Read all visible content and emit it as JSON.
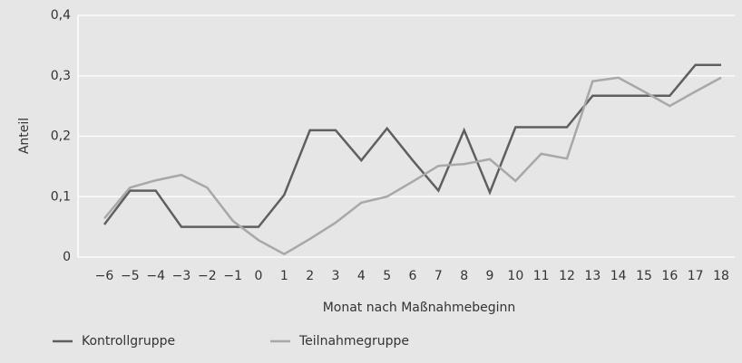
{
  "chart_data": {
    "type": "line",
    "xlabel": "Monat nach Maßnahmebeginn",
    "ylabel": "Anteil",
    "categories": [
      "−6",
      "−5",
      "−4",
      "−3",
      "−2",
      "−1",
      "0",
      "1",
      "2",
      "3",
      "4",
      "5",
      "6",
      "7",
      "8",
      "9",
      "10",
      "11",
      "12",
      "13",
      "14",
      "15",
      "16",
      "17",
      "18"
    ],
    "series": [
      {
        "name": "Kontrollgruppe",
        "color": "#5f5f5f",
        "values": [
          0.054,
          0.11,
          0.11,
          0.05,
          0.05,
          0.05,
          0.05,
          0.103,
          0.21,
          0.21,
          0.16,
          0.213,
          0.16,
          0.11,
          0.21,
          0.107,
          0.215,
          0.215,
          0.215,
          0.267,
          0.267,
          0.267,
          0.267,
          0.318,
          0.318
        ]
      },
      {
        "name": "Teilnahmegruppe",
        "color": "#a8a8a8",
        "values": [
          0.064,
          0.115,
          0.127,
          0.136,
          0.115,
          0.06,
          0.028,
          0.005,
          0.03,
          0.057,
          0.09,
          0.1,
          0.125,
          0.151,
          0.154,
          0.162,
          0.126,
          0.171,
          0.163,
          0.291,
          0.297,
          0.274,
          0.25,
          0.274,
          0.297
        ]
      }
    ],
    "ylim": [
      0,
      0.4
    ],
    "yticks": [
      0,
      {
        "value": 0.1,
        "label": "0,1"
      },
      {
        "value": 0.2,
        "label": "0,2"
      },
      {
        "value": 0.3,
        "label": "0,3"
      },
      {
        "value": 0.4,
        "label": "0,4"
      }
    ],
    "grid": true
  }
}
